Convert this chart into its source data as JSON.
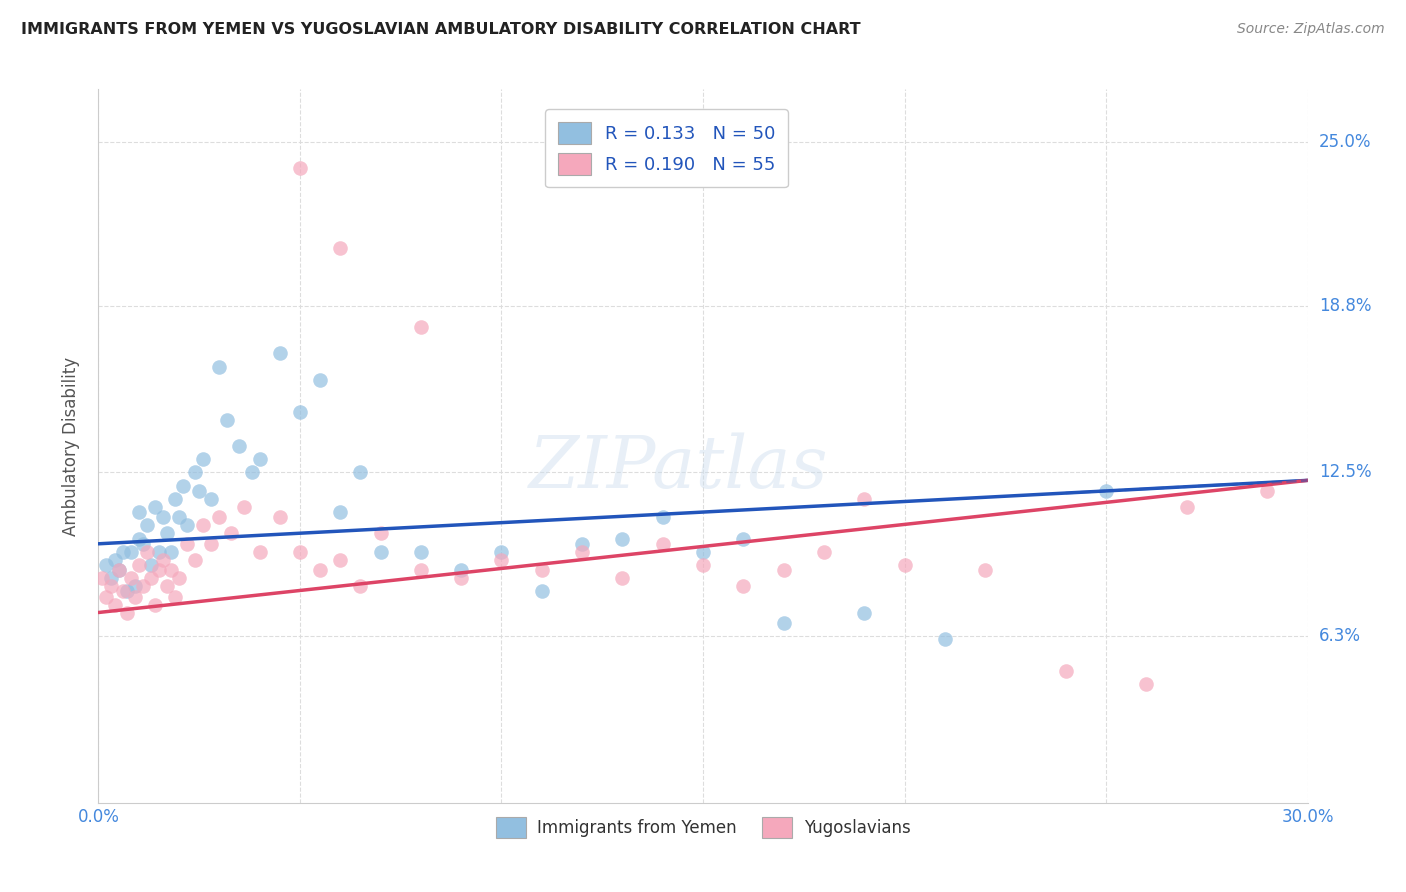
{
  "title": "IMMIGRANTS FROM YEMEN VS YUGOSLAVIAN AMBULATORY DISABILITY CORRELATION CHART",
  "source": "Source: ZipAtlas.com",
  "ylabel": "Ambulatory Disability",
  "yticks_labels": [
    "6.3%",
    "12.5%",
    "18.8%",
    "25.0%"
  ],
  "ytick_values": [
    0.063,
    0.125,
    0.188,
    0.25
  ],
  "xlim": [
    0.0,
    0.3
  ],
  "ylim": [
    0.0,
    0.27
  ],
  "scatter1_label": "Immigrants from Yemen",
  "scatter2_label": "Yugoslavians",
  "color1": "#92BFE0",
  "color2": "#F5A8BC",
  "line1_color": "#2255BB",
  "line2_color": "#DD4466",
  "R1": 0.133,
  "N1": 50,
  "R2": 0.19,
  "N2": 55,
  "blue_x": [
    0.002,
    0.003,
    0.004,
    0.005,
    0.006,
    0.007,
    0.008,
    0.009,
    0.01,
    0.01,
    0.011,
    0.012,
    0.013,
    0.014,
    0.015,
    0.016,
    0.017,
    0.018,
    0.019,
    0.02,
    0.021,
    0.022,
    0.024,
    0.025,
    0.026,
    0.028,
    0.03,
    0.032,
    0.035,
    0.038,
    0.04,
    0.045,
    0.05,
    0.055,
    0.06,
    0.065,
    0.07,
    0.08,
    0.09,
    0.1,
    0.11,
    0.12,
    0.13,
    0.14,
    0.15,
    0.16,
    0.17,
    0.19,
    0.21,
    0.25
  ],
  "blue_y": [
    0.09,
    0.085,
    0.092,
    0.088,
    0.095,
    0.08,
    0.095,
    0.082,
    0.1,
    0.11,
    0.098,
    0.105,
    0.09,
    0.112,
    0.095,
    0.108,
    0.102,
    0.095,
    0.115,
    0.108,
    0.12,
    0.105,
    0.125,
    0.118,
    0.13,
    0.115,
    0.165,
    0.145,
    0.135,
    0.125,
    0.13,
    0.17,
    0.148,
    0.16,
    0.11,
    0.125,
    0.095,
    0.095,
    0.088,
    0.095,
    0.08,
    0.098,
    0.1,
    0.108,
    0.095,
    0.1,
    0.068,
    0.072,
    0.062,
    0.118
  ],
  "pink_x": [
    0.001,
    0.002,
    0.003,
    0.004,
    0.005,
    0.006,
    0.007,
    0.008,
    0.009,
    0.01,
    0.011,
    0.012,
    0.013,
    0.014,
    0.015,
    0.016,
    0.017,
    0.018,
    0.019,
    0.02,
    0.022,
    0.024,
    0.026,
    0.028,
    0.03,
    0.033,
    0.036,
    0.04,
    0.045,
    0.05,
    0.055,
    0.06,
    0.065,
    0.07,
    0.08,
    0.09,
    0.1,
    0.11,
    0.12,
    0.13,
    0.14,
    0.15,
    0.16,
    0.17,
    0.18,
    0.19,
    0.2,
    0.22,
    0.24,
    0.26,
    0.27,
    0.05,
    0.06,
    0.08,
    0.29
  ],
  "pink_y": [
    0.085,
    0.078,
    0.082,
    0.075,
    0.088,
    0.08,
    0.072,
    0.085,
    0.078,
    0.09,
    0.082,
    0.095,
    0.085,
    0.075,
    0.088,
    0.092,
    0.082,
    0.088,
    0.078,
    0.085,
    0.098,
    0.092,
    0.105,
    0.098,
    0.108,
    0.102,
    0.112,
    0.095,
    0.108,
    0.095,
    0.088,
    0.092,
    0.082,
    0.102,
    0.088,
    0.085,
    0.092,
    0.088,
    0.095,
    0.085,
    0.098,
    0.09,
    0.082,
    0.088,
    0.095,
    0.115,
    0.09,
    0.088,
    0.05,
    0.045,
    0.112,
    0.24,
    0.21,
    0.18,
    0.118
  ],
  "watermark_text": "ZIPatlas",
  "bg_color": "#FFFFFF",
  "grid_color": "#DDDDDD",
  "spine_color": "#CCCCCC",
  "tick_label_color": "#4488DD",
  "title_color": "#222222",
  "source_color": "#888888",
  "ylabel_color": "#555555",
  "legend_edge_color": "#CCCCCC",
  "legend_text_color": "#2255BB"
}
